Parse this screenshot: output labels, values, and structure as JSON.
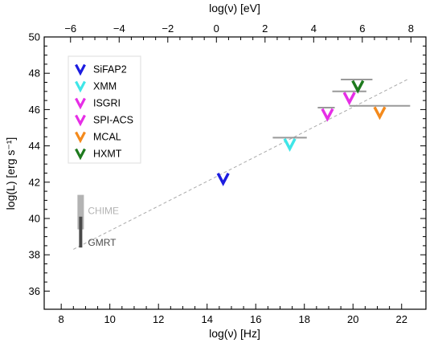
{
  "chart_data": {
    "type": "scatter",
    "title": "",
    "xlabel": "log(ν) [Hz]",
    "ylabel": "log(L) [erg s⁻¹]",
    "x2label": "log(ν) [eV]",
    "xlim": [
      7.3,
      23.0
    ],
    "ylim": [
      35,
      50
    ],
    "xticks": [
      8,
      10,
      12,
      14,
      16,
      18,
      20,
      22
    ],
    "yticks": [
      36,
      38,
      40,
      42,
      44,
      46,
      48,
      50
    ],
    "x2ticks": [
      -6,
      -4,
      -2,
      0,
      2,
      4,
      6,
      8
    ],
    "x2_offset": 14.383,
    "legend": {
      "placement": "top-left",
      "items": [
        {
          "name": "SiFAP2",
          "color": "#1c1ce0"
        },
        {
          "name": "XMM",
          "color": "#3fe6e8"
        },
        {
          "name": "ISGRI",
          "color": "#e62ee6"
        },
        {
          "name": "SPI-ACS",
          "color": "#e62ee6"
        },
        {
          "name": "MCAL",
          "color": "#f48a1c"
        },
        {
          "name": "HXMT",
          "color": "#1e7a1e"
        }
      ]
    },
    "series": [
      {
        "name": "SiFAP2",
        "color": "#1c1ce0",
        "x": 14.66,
        "y": 42.2
      },
      {
        "name": "XMM",
        "color": "#3fe6e8",
        "x": 17.4,
        "y": 44.1,
        "xerr": [
          16.7,
          18.1
        ]
      },
      {
        "name": "ISGRI",
        "color": "#e62ee6",
        "x": 18.95,
        "y": 45.75,
        "xerr": [
          18.55,
          19.25
        ]
      },
      {
        "name": "SPI-ACS",
        "color": "#e62ee6",
        "x": 19.85,
        "y": 46.65,
        "xerr": [
          19.15,
          20.55
        ]
      },
      {
        "name": "MCAL",
        "color": "#f48a1c",
        "x": 21.1,
        "y": 45.85,
        "xerr": [
          19.85,
          22.35
        ]
      },
      {
        "name": "HXMT",
        "color": "#1e7a1e",
        "x": 20.2,
        "y": 47.3,
        "xerr": [
          19.5,
          20.8
        ]
      }
    ],
    "radio_bands": [
      {
        "label": "CHIME",
        "x": 8.8,
        "y_range": [
          39.4,
          41.3
        ],
        "color": "#b3b3b3"
      },
      {
        "label": "GMRT",
        "x": 8.8,
        "y_range": [
          38.4,
          40.1
        ],
        "color": "#4a4a4a"
      }
    ],
    "trend_line": {
      "x": [
        8.5,
        22.3
      ],
      "y": [
        38.3,
        47.7
      ],
      "style": "dashed",
      "color": "#aaaaaa"
    }
  }
}
